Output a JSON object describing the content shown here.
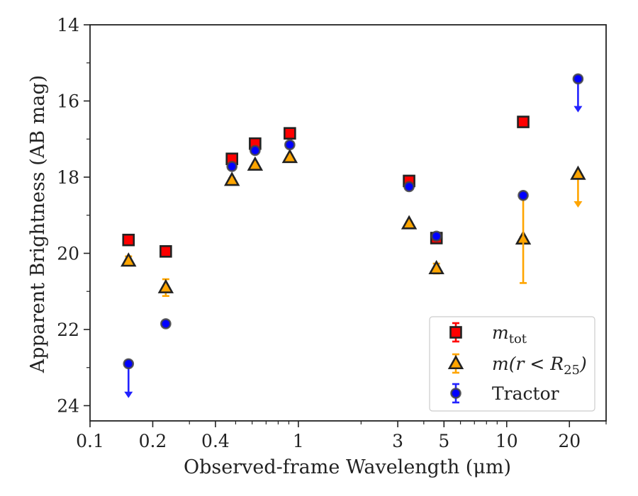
{
  "chart_data": {
    "type": "scatter",
    "xlabel": "Observed-frame Wavelength (μm)",
    "ylabel": "Apparent Brightness (AB mag)",
    "xscale": "log",
    "xlim": [
      0.1,
      30
    ],
    "ylim": [
      24.4,
      14
    ],
    "y_inverted": true,
    "xticks": [
      {
        "value": 0.1,
        "label": "0.1"
      },
      {
        "value": 0.2,
        "label": "0.2"
      },
      {
        "value": 0.4,
        "label": "0.4"
      },
      {
        "value": 1,
        "label": "1"
      },
      {
        "value": 3,
        "label": "3"
      },
      {
        "value": 5,
        "label": "5"
      },
      {
        "value": 10,
        "label": "10"
      },
      {
        "value": 20,
        "label": "20"
      }
    ],
    "yticks": [
      {
        "value": 14,
        "label": "14"
      },
      {
        "value": 16,
        "label": "16"
      },
      {
        "value": 18,
        "label": "18"
      },
      {
        "value": 20,
        "label": "20"
      },
      {
        "value": 22,
        "label": "22"
      },
      {
        "value": 24,
        "label": "24"
      }
    ],
    "legend_position": "lower-right",
    "series": [
      {
        "name": "m_tot",
        "label_main": "m",
        "label_sub": "tot",
        "marker": "square",
        "color": "#ff0000",
        "err_color": "#ff0000",
        "points": [
          {
            "x": 0.153,
            "y": 19.65,
            "err": 0.04
          },
          {
            "x": 0.231,
            "y": 19.95,
            "err": 0.04
          },
          {
            "x": 0.48,
            "y": 17.52,
            "err": 0.04
          },
          {
            "x": 0.62,
            "y": 17.12,
            "err": 0.05
          },
          {
            "x": 0.91,
            "y": 16.85,
            "err": 0.04
          },
          {
            "x": 3.4,
            "y": 18.1,
            "err": 0.05
          },
          {
            "x": 4.6,
            "y": 19.6,
            "err": 0.05
          },
          {
            "x": 12.0,
            "y": 16.55,
            "err": 0.04
          }
        ]
      },
      {
        "name": "m(r < R_25)",
        "label_main": "m(r < R",
        "label_sub": "25",
        "label_tail": ")",
        "marker": "triangle",
        "color": "#ffa500",
        "err_color": "#ffa500",
        "points": [
          {
            "x": 0.153,
            "y": 20.2,
            "err": 0.12
          },
          {
            "x": 0.231,
            "y": 20.9,
            "err": 0.22
          },
          {
            "x": 0.48,
            "y": 18.08,
            "err": 0.05
          },
          {
            "x": 0.62,
            "y": 17.68,
            "err": 0.05
          },
          {
            "x": 0.91,
            "y": 17.48,
            "err": 0.05
          },
          {
            "x": 3.4,
            "y": 19.22,
            "err": 0.05
          },
          {
            "x": 4.6,
            "y": 20.4,
            "err": 0.13
          },
          {
            "x": 12.0,
            "y": 19.62,
            "err": 0.05
          },
          {
            "x": 22.0,
            "y": 17.92,
            "upper_limit": true,
            "arrow_to": 18.8
          }
        ]
      },
      {
        "name": "Tractor",
        "label_main": "Tractor",
        "marker": "circle",
        "color": "#0000ff",
        "err_color": "#2222ff",
        "points": [
          {
            "x": 0.153,
            "y": 22.9,
            "upper_limit": true,
            "arrow_to": 23.8
          },
          {
            "x": 0.231,
            "y": 21.85,
            "err": 0.05
          },
          {
            "x": 0.48,
            "y": 17.72,
            "err": 0.05
          },
          {
            "x": 0.62,
            "y": 17.3,
            "err": 0.05
          },
          {
            "x": 0.91,
            "y": 17.15,
            "err": 0.04
          },
          {
            "x": 3.4,
            "y": 18.25,
            "err": 0.05
          },
          {
            "x": 4.6,
            "y": 19.55,
            "err": 0.05
          },
          {
            "x": 12.0,
            "y": 18.48,
            "err_low": 2.3,
            "err_high": 0.05,
            "err_color": "#ffa500"
          },
          {
            "x": 22.0,
            "y": 15.42,
            "upper_limit": true,
            "arrow_to": 16.3
          }
        ]
      }
    ]
  }
}
